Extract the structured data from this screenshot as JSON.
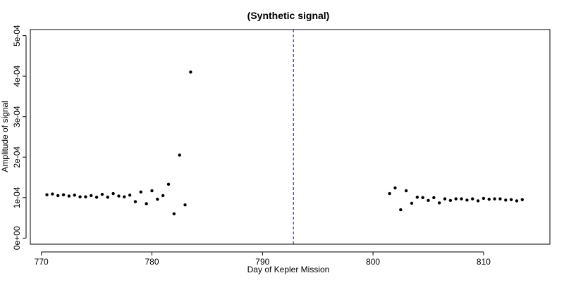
{
  "chart_data": {
    "type": "scatter",
    "title": "(Synthetic signal)",
    "xlabel": "Day of Kepler Mission",
    "ylabel": "Amplitude of signal",
    "xlim": [
      769,
      816
    ],
    "ylim": [
      -1.5e-05,
      0.000515
    ],
    "x_ticks": [
      770,
      780,
      790,
      800,
      810
    ],
    "x_tick_labels": [
      "770",
      "780",
      "790",
      "800",
      "810"
    ],
    "y_ticks": [
      0,
      0.0001,
      0.0002,
      0.0003,
      0.0004,
      0.0005
    ],
    "y_tick_labels": [
      "0e+00",
      "1e-04",
      "2e-04",
      "3e-04",
      "4e-04",
      "5e-04"
    ],
    "grid": false,
    "vertical_line": {
      "x": 792.8,
      "style": "dashed",
      "color": "#0000ff"
    },
    "point_color": "#000000",
    "series": [
      {
        "x": [
          770.5,
          771.0,
          771.5,
          772.0,
          772.5,
          773.0,
          773.5,
          774.0,
          774.5,
          775.0,
          775.5,
          776.0,
          776.5,
          777.0,
          777.5,
          778.0,
          778.5,
          779.0,
          779.5,
          780.0,
          780.5,
          781.0,
          781.5,
          782.0,
          782.5,
          783.0,
          783.5,
          801.5,
          802.0,
          802.5,
          803.0,
          803.5,
          804.0,
          804.5,
          805.0,
          805.5,
          806.0,
          806.5,
          807.0,
          807.5,
          808.0,
          808.5,
          809.0,
          809.5,
          810.0,
          810.5,
          811.0,
          811.5,
          812.0,
          812.5,
          813.0,
          813.5
        ],
        "y": [
          0.000107,
          0.000109,
          0.000105,
          0.000107,
          0.000104,
          0.000106,
          0.000102,
          0.000102,
          0.000105,
          0.000101,
          0.000108,
          0.000101,
          0.00011,
          0.000104,
          0.000102,
          0.000106,
          9e-05,
          0.000114,
          8.5e-05,
          0.000117,
          9.6e-05,
          0.000105,
          0.000133,
          6e-05,
          0.000205,
          8.2e-05,
          0.00041,
          0.00011,
          0.000124,
          7e-05,
          0.000117,
          8.6e-05,
          0.000101,
          0.0001,
          9.3e-05,
          0.0001,
          8.7e-05,
          9.7e-05,
          9.3e-05,
          9.7e-05,
          9.7e-05,
          9.4e-05,
          9.7e-05,
          9.2e-05,
          9.8e-05,
          9.6e-05,
          9.7e-05,
          9.7e-05,
          9.4e-05,
          9.5e-05,
          9.2e-05,
          9.5e-05
        ]
      }
    ]
  }
}
